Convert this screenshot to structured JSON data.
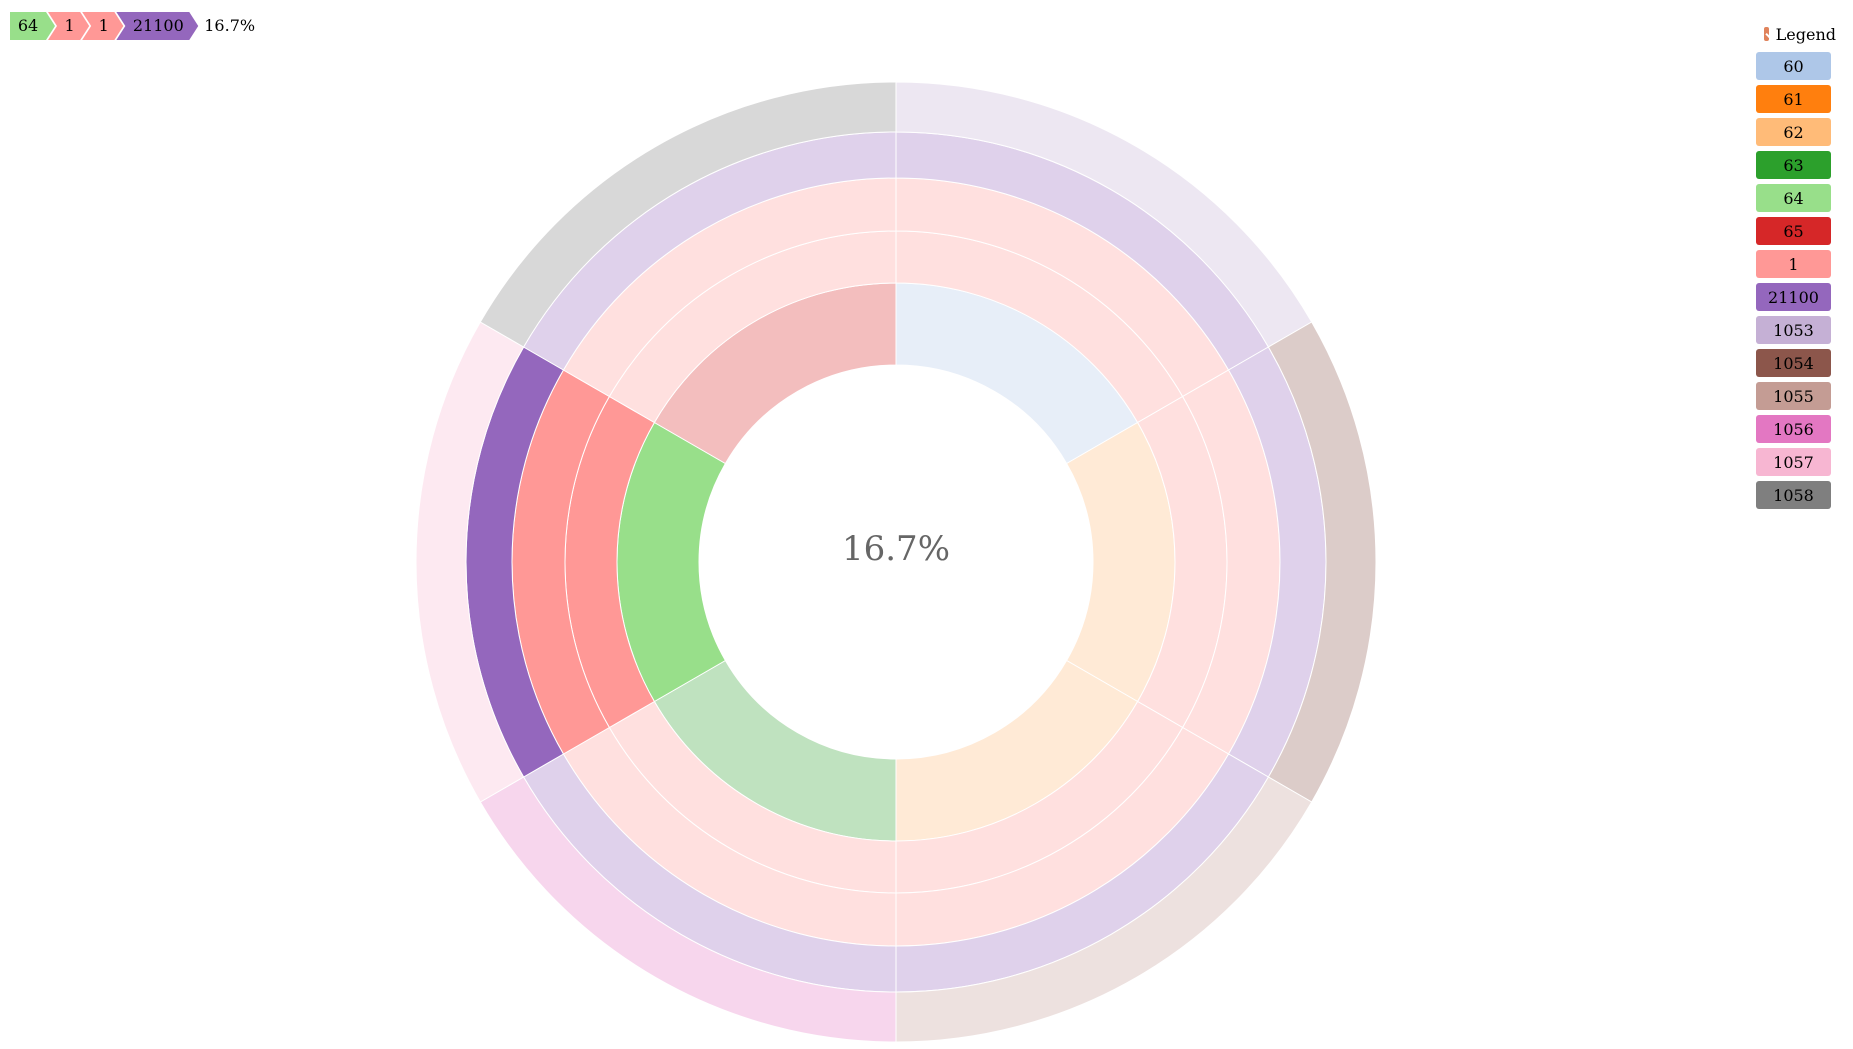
{
  "breadcrumb": {
    "items": [
      {
        "label": "64",
        "color": "#98df8a"
      },
      {
        "label": "1",
        "color": "#ff9896"
      },
      {
        "label": "1",
        "color": "#ff9896"
      },
      {
        "label": "21100",
        "color": "#9467bd"
      }
    ],
    "percentage": "16.7%"
  },
  "legend": {
    "title": "Legend",
    "checked": true,
    "items": [
      {
        "label": "60",
        "color": "#aec7e8"
      },
      {
        "label": "61",
        "color": "#ff7f0e"
      },
      {
        "label": "62",
        "color": "#ffbb78"
      },
      {
        "label": "63",
        "color": "#2ca02c"
      },
      {
        "label": "64",
        "color": "#98df8a"
      },
      {
        "label": "65",
        "color": "#d62728"
      },
      {
        "label": "1",
        "color": "#ff9896"
      },
      {
        "label": "21100",
        "color": "#9467bd"
      },
      {
        "label": "1053",
        "color": "#c5b0d5"
      },
      {
        "label": "1054",
        "color": "#8c564b"
      },
      {
        "label": "1055",
        "color": "#c49c94"
      },
      {
        "label": "1056",
        "color": "#e377c2"
      },
      {
        "label": "1057",
        "color": "#f7b6d2"
      },
      {
        "label": "1058",
        "color": "#7f7f7f"
      }
    ]
  },
  "chart_data": {
    "type": "sunburst",
    "center_label": "16.7%",
    "highlighted_path": [
      "64",
      "1",
      "1",
      "21100"
    ],
    "rings": [
      {
        "level": 1,
        "segments": [
          {
            "name": "60",
            "value": 1,
            "color": "#aec7e8"
          },
          {
            "name": "62",
            "value": 1,
            "color": "#ffbb78"
          },
          {
            "name": "62",
            "value": 1,
            "color": "#ffbb78"
          },
          {
            "name": "63",
            "value": 1,
            "color": "#2ca02c"
          },
          {
            "name": "64",
            "value": 1,
            "color": "#98df8a",
            "highlighted": true
          },
          {
            "name": "65",
            "value": 1,
            "color": "#d62728"
          }
        ]
      },
      {
        "level": 2,
        "segments": [
          {
            "name": "1",
            "value": 1,
            "color": "#ff9896"
          },
          {
            "name": "1",
            "value": 1,
            "color": "#ff9896"
          },
          {
            "name": "1",
            "value": 1,
            "color": "#ff9896"
          },
          {
            "name": "1",
            "value": 1,
            "color": "#ff9896"
          },
          {
            "name": "1",
            "value": 1,
            "color": "#ff9896",
            "highlighted": true
          },
          {
            "name": "1",
            "value": 1,
            "color": "#ff9896"
          }
        ]
      },
      {
        "level": 3,
        "segments": [
          {
            "name": "1",
            "value": 1,
            "color": "#ff9896"
          },
          {
            "name": "1",
            "value": 1,
            "color": "#ff9896"
          },
          {
            "name": "1",
            "value": 1,
            "color": "#ff9896"
          },
          {
            "name": "1",
            "value": 1,
            "color": "#ff9896"
          },
          {
            "name": "1",
            "value": 1,
            "color": "#ff9896",
            "highlighted": true
          },
          {
            "name": "1",
            "value": 1,
            "color": "#ff9896"
          }
        ]
      },
      {
        "level": 4,
        "segments": [
          {
            "name": "21100",
            "value": 1,
            "color": "#9467bd"
          },
          {
            "name": "21100",
            "value": 1,
            "color": "#9467bd"
          },
          {
            "name": "21100",
            "value": 1,
            "color": "#9467bd"
          },
          {
            "name": "21100",
            "value": 1,
            "color": "#9467bd"
          },
          {
            "name": "21100",
            "value": 1,
            "color": "#9467bd",
            "highlighted": true
          },
          {
            "name": "21100",
            "value": 1,
            "color": "#9467bd"
          }
        ]
      },
      {
        "level": 5,
        "segments": [
          {
            "name": "1053",
            "value": 1,
            "color": "#c5b0d5"
          },
          {
            "name": "1054",
            "value": 1,
            "color": "#8c564b"
          },
          {
            "name": "1055",
            "value": 1,
            "color": "#c49c94"
          },
          {
            "name": "1056",
            "value": 1,
            "color": "#e377c2"
          },
          {
            "name": "1057",
            "value": 1,
            "color": "#f7b6d2"
          },
          {
            "name": "1058",
            "value": 1,
            "color": "#7f7f7f"
          }
        ]
      }
    ]
  }
}
